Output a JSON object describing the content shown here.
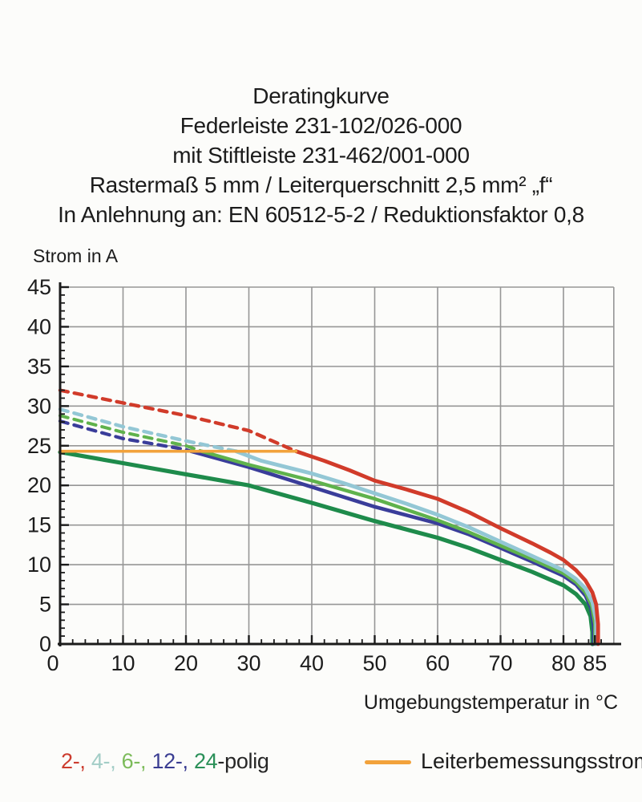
{
  "title_lines": [
    "Deratingkurve",
    "Federleiste 231-102/026-000",
    "mit Stiftleiste 231-462/001-000",
    "Rastermaß 5 mm / Leiterquerschnitt 2,5 mm² „f“",
    "In Anlehnung an: EN 60512-5-2 / Reduktionsfaktor 0,8"
  ],
  "pole_legend": {
    "parts": [
      {
        "text": "2-, ",
        "color": "#cc3c2e"
      },
      {
        "text": "4-, ",
        "color": "#a2cdc6"
      },
      {
        "text": "6-, ",
        "color": "#7cbb5a"
      },
      {
        "text": "12-, ",
        "color": "#3a3d92"
      },
      {
        "text": "24",
        "color": "#2a9058"
      },
      {
        "text": "-polig",
        "color": "#262626"
      }
    ]
  },
  "chart_data": {
    "type": "line",
    "title": "Deratingkurve",
    "xlabel": "Umgebungstemperatur in °C",
    "ylabel": "Strom in A",
    "xlim": [
      0,
      88
    ],
    "ylim": [
      0,
      45
    ],
    "x_tick_labels": [
      0,
      10,
      20,
      30,
      40,
      50,
      60,
      70,
      80,
      85
    ],
    "y_tick_labels": [
      0,
      5,
      10,
      15,
      20,
      25,
      30,
      35,
      40,
      45
    ],
    "x_gridlines": [
      10,
      20,
      30,
      40,
      50,
      60,
      70,
      80,
      88
    ],
    "y_gridlines": [
      5,
      10,
      15,
      20,
      25,
      30,
      35,
      40,
      45
    ],
    "x_minor_step": 2,
    "y_minor_step": 1,
    "grid": true,
    "legend_position": "bottom",
    "rated_line": {
      "label": "Leiterbemessungsstrom",
      "color": "#f2a23b",
      "y": 24.3,
      "x_start": 0,
      "x_end": 37.5
    },
    "series": [
      {
        "name": "24-polig",
        "poles": 24,
        "color": "#1e8b4b",
        "width": 5.2,
        "dashed_points": [],
        "solid_points": [
          [
            0,
            24.2
          ],
          [
            10,
            22.8
          ],
          [
            20,
            21.4
          ],
          [
            30,
            20.0
          ],
          [
            40,
            17.8
          ],
          [
            50,
            15.5
          ],
          [
            60,
            13.4
          ],
          [
            65,
            12.1
          ],
          [
            70,
            10.6
          ],
          [
            75,
            9.1
          ],
          [
            80,
            7.4
          ],
          [
            82,
            6.3
          ],
          [
            83.5,
            5.0
          ],
          [
            84.3,
            3.5
          ],
          [
            84.6,
            1.5
          ],
          [
            84.6,
            0
          ]
        ]
      },
      {
        "name": "12-polig",
        "poles": 12,
        "color": "#3a3d9a",
        "width": 4.6,
        "dashed_points": [
          [
            0,
            28.1
          ],
          [
            10,
            25.9
          ],
          [
            20,
            24.5
          ],
          [
            20.8,
            24.3
          ]
        ],
        "solid_points": [
          [
            20.8,
            24.3
          ],
          [
            30,
            22.3
          ],
          [
            40,
            19.8
          ],
          [
            50,
            17.3
          ],
          [
            60,
            15.2
          ],
          [
            65,
            13.8
          ],
          [
            70,
            12.1
          ],
          [
            75,
            10.4
          ],
          [
            80,
            8.6
          ],
          [
            82,
            7.5
          ],
          [
            83.5,
            6.1
          ],
          [
            84.4,
            4.5
          ],
          [
            84.8,
            2.2
          ],
          [
            84.8,
            0
          ]
        ]
      },
      {
        "name": "6-polig",
        "poles": 6,
        "color": "#5fb24c",
        "width": 4.4,
        "dashed_points": [
          [
            0,
            28.8
          ],
          [
            10,
            26.7
          ],
          [
            20,
            25.0
          ],
          [
            22.5,
            24.3
          ]
        ],
        "solid_points": [
          [
            22.5,
            24.3
          ],
          [
            30,
            22.6
          ],
          [
            40,
            20.6
          ],
          [
            50,
            18.3
          ],
          [
            60,
            15.6
          ],
          [
            65,
            14.1
          ],
          [
            70,
            12.4
          ],
          [
            75,
            10.7
          ],
          [
            80,
            8.9
          ],
          [
            82,
            7.8
          ],
          [
            83.5,
            6.5
          ],
          [
            84.5,
            4.8
          ],
          [
            85,
            2.5
          ],
          [
            85,
            0
          ]
        ]
      },
      {
        "name": "4-polig",
        "poles": 4,
        "color": "#93c7d5",
        "width": 4.8,
        "dashed_points": [
          [
            0,
            29.6
          ],
          [
            10,
            27.4
          ],
          [
            20,
            25.6
          ],
          [
            28,
            24.3
          ]
        ],
        "solid_points": [
          [
            28,
            24.3
          ],
          [
            32,
            23.1
          ],
          [
            36,
            22.3
          ],
          [
            40,
            21.5
          ],
          [
            45,
            20.3
          ],
          [
            50,
            19.0
          ],
          [
            55,
            17.7
          ],
          [
            60,
            16.3
          ],
          [
            65,
            14.7
          ],
          [
            70,
            12.9
          ],
          [
            75,
            11.1
          ],
          [
            80,
            9.3
          ],
          [
            82,
            8.2
          ],
          [
            83.5,
            7.0
          ],
          [
            84.6,
            5.3
          ],
          [
            85.2,
            3.0
          ],
          [
            85.2,
            0
          ]
        ]
      },
      {
        "name": "2-polig",
        "poles": 2,
        "color": "#d13b2a",
        "width": 4.8,
        "dashed_points": [
          [
            0,
            32
          ],
          [
            10,
            30.4
          ],
          [
            20,
            28.8
          ],
          [
            30,
            26.9
          ],
          [
            37.5,
            24.3
          ]
        ],
        "solid_points": [
          [
            37.5,
            24.3
          ],
          [
            42,
            23.1
          ],
          [
            46,
            21.9
          ],
          [
            50,
            20.6
          ],
          [
            55,
            19.5
          ],
          [
            60,
            18.3
          ],
          [
            65,
            16.6
          ],
          [
            70,
            14.6
          ],
          [
            75,
            12.7
          ],
          [
            78,
            11.5
          ],
          [
            80,
            10.6
          ],
          [
            82,
            9.3
          ],
          [
            83.5,
            8.0
          ],
          [
            84.6,
            6.5
          ],
          [
            85.2,
            5.0
          ],
          [
            85.5,
            2.5
          ],
          [
            85.5,
            0
          ]
        ]
      }
    ]
  }
}
